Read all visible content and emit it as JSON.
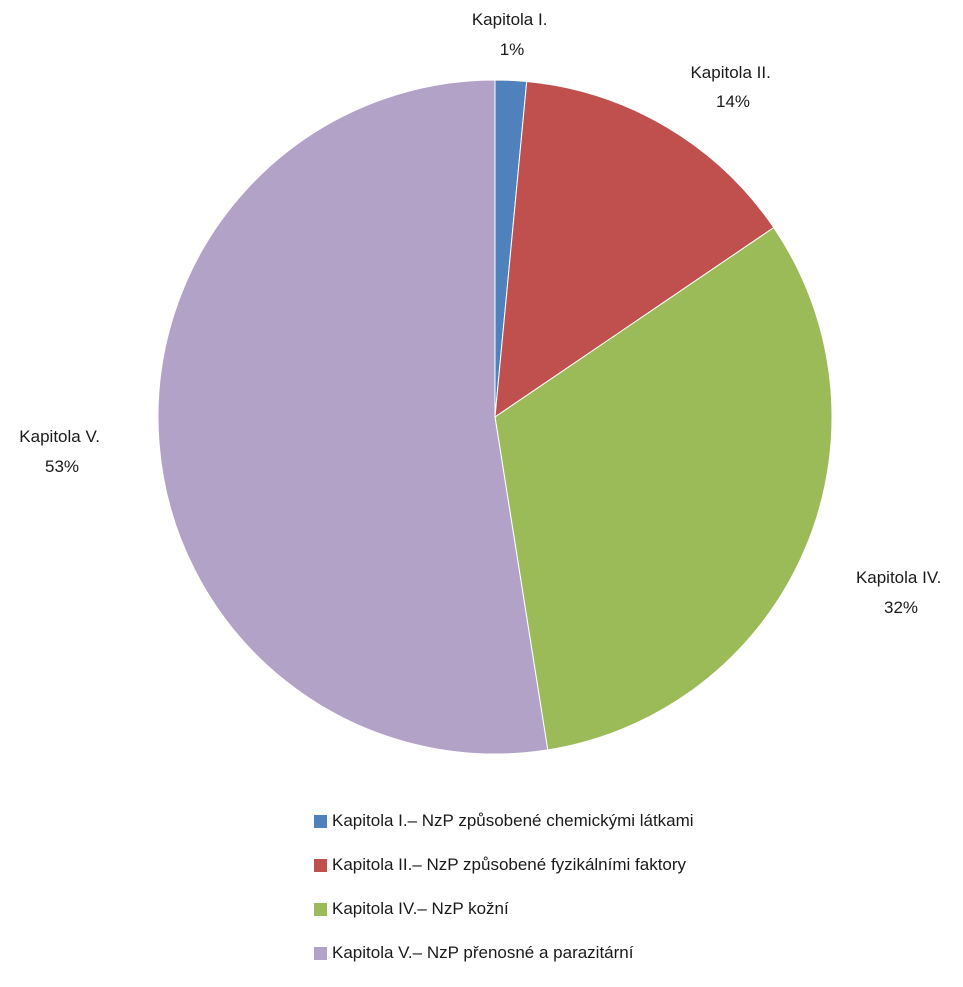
{
  "chart_data": {
    "type": "pie",
    "categories": [
      "Kapitola I.",
      "Kapitola II.",
      "Kapitola IV.",
      "Kapitola V."
    ],
    "values": [
      1.5,
      14,
      32,
      52.5
    ],
    "data_labels": [
      {
        "name": "Kapitola I.",
        "percent": "1%"
      },
      {
        "name": "Kapitola II.",
        "percent": "14%"
      },
      {
        "name": "Kapitola IV.",
        "percent": "32%"
      },
      {
        "name": "Kapitola V.",
        "percent": "53%"
      }
    ],
    "colors": [
      "#4f81bd",
      "#c0504d",
      "#9bbb59",
      "#b2a2c7"
    ],
    "legend_position": "bottom",
    "legend": [
      {
        "label": "Kapitola I.– NzP způsobené chemickými látkami",
        "color": "#4f81bd"
      },
      {
        "label": "Kapitola II.– NzP způsobené fyzikálními faktory",
        "color": "#c0504d"
      },
      {
        "label": "Kapitola IV.– NzP kožní",
        "color": "#9bbb59"
      },
      {
        "label": "Kapitola V.– NzP přenosné a parazitární",
        "color": "#b2a2c7"
      }
    ]
  }
}
